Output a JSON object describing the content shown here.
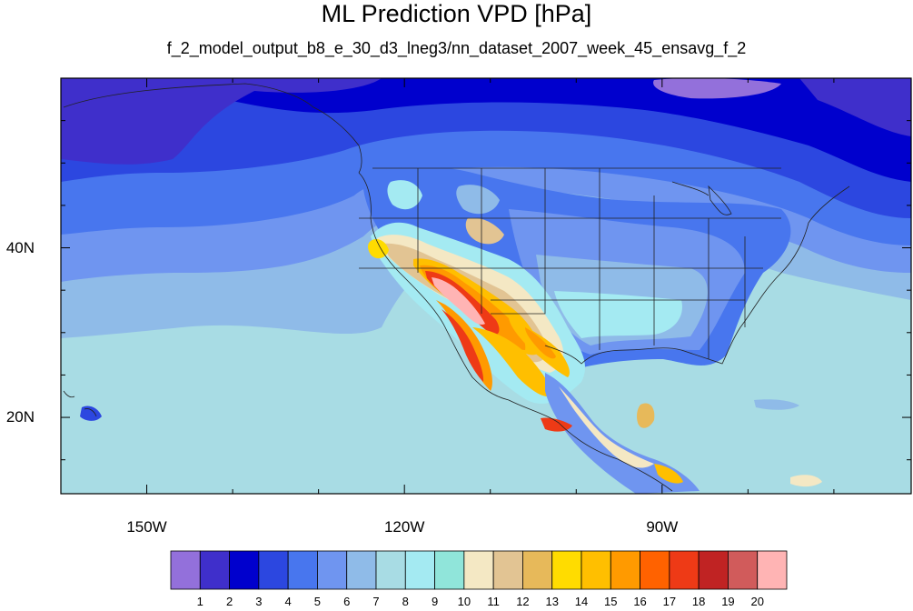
{
  "title": "ML Prediction VPD [hPa]",
  "subtitle": "f_2_model_output_b8_e_30_d3_lneg3/nn_dataset_2007_week_45_ensavg_f_2",
  "map": {
    "lon_range": [
      -160,
      -61
    ],
    "lat_range": [
      11,
      60
    ],
    "lon_ticks": [
      {
        "value": -150,
        "label": "150W"
      },
      {
        "value": -120,
        "label": "120W"
      },
      {
        "value": -90,
        "label": "90W"
      }
    ],
    "lat_ticks": [
      {
        "value": 40,
        "label": "40N"
      },
      {
        "value": 20,
        "label": "20N"
      }
    ]
  },
  "colorbar": {
    "colors": [
      "#9370DB",
      "#3F2FCB",
      "#0000CD",
      "#2C47E0",
      "#4876EE",
      "#6F95F0",
      "#8FBBE8",
      "#A8DCE4",
      "#A4EAF2",
      "#90E5DA",
      "#F4E8C4",
      "#E2C493",
      "#E7B95A",
      "#FFDC00",
      "#FFBF00",
      "#FF9A00",
      "#FF6200",
      "#EE3A16",
      "#C02323",
      "#D15B5B",
      "#FFB4B4"
    ],
    "labels": [
      "1",
      "2",
      "3",
      "4",
      "5",
      "6",
      "7",
      "8",
      "9",
      "10",
      "11",
      "12",
      "13",
      "14",
      "15",
      "16",
      "17",
      "18",
      "19",
      "20"
    ]
  }
}
